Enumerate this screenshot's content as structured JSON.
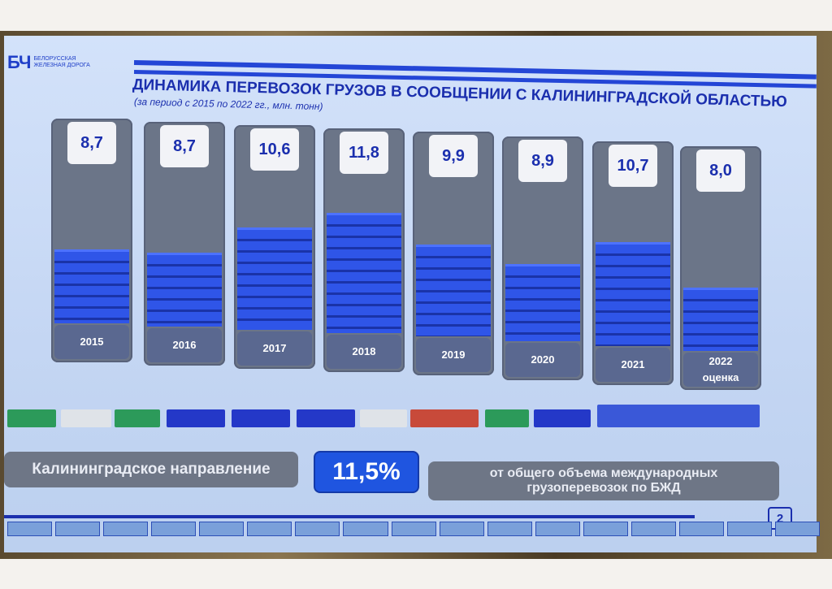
{
  "logo": {
    "mark": "БЧ",
    "text": "БЕЛОРУССКАЯ ЖЕЛЕЗНАЯ ДОРОГА"
  },
  "chart_data": {
    "type": "bar",
    "title": "ДИНАМИКА ПЕРЕВОЗОК ГРУЗОВ В СООБЩЕНИИ С КАЛИНИНГРАДСКОЙ ОБЛАСТЬЮ",
    "subtitle": "(за период с 2015 по 2022 гг., млн. тонн)",
    "categories": [
      "2015",
      "2016",
      "2017",
      "2018",
      "2019",
      "2020",
      "2021",
      "2022"
    ],
    "category_notes": [
      "",
      "",
      "",
      "",
      "",
      "",
      "",
      "оценка"
    ],
    "values": [
      8.7,
      8.7,
      10.6,
      11.8,
      9.9,
      8.9,
      10.7,
      8.0
    ],
    "value_labels": [
      "8,7",
      "8,7",
      "10,6",
      "11,8",
      "9,9",
      "8,9",
      "10,7",
      "8,0"
    ],
    "colors": {
      "bar": "#2f55e8",
      "column": "#6b7588",
      "label_box": "#f2f3f7"
    }
  },
  "summary": {
    "left": "Калининградское направление",
    "percent": "11,5%",
    "right": "от общего объема международных грузоперевозок по БЖД"
  },
  "page_number": "2"
}
